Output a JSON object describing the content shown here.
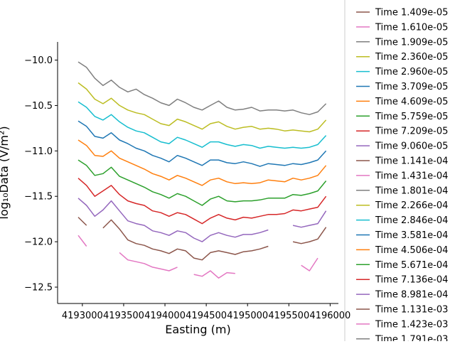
{
  "chart_data": {
    "type": "line",
    "xlabel": "Easting (m)",
    "ylabel": "log₁₀Data (V/m²)",
    "xlim": [
      4192700,
      4196100
    ],
    "ylim": [
      -12.68,
      -9.8
    ],
    "x_ticks": [
      4193000,
      4193500,
      4194000,
      4194500,
      4195000,
      4195500,
      4196000
    ],
    "x_tick_labels": [
      "4193000",
      "4193500",
      "4194000",
      "4194500",
      "4195000",
      "4195500",
      "4196000"
    ],
    "y_ticks": [
      -10.0,
      -10.5,
      -11.0,
      -11.5,
      -12.0,
      -12.5
    ],
    "y_tick_labels": [
      "−10.0",
      "−10.5",
      "−11.0",
      "−11.5",
      "−12.0",
      "−12.5"
    ],
    "legend_position": "right, outside plot (clipped at top and bottom)",
    "x": [
      4192950,
      4193050,
      4193150,
      4193250,
      4193350,
      4193450,
      4193550,
      4193650,
      4193750,
      4193850,
      4193950,
      4194050,
      4194150,
      4194250,
      4194350,
      4194450,
      4194550,
      4194650,
      4194750,
      4194850,
      4194950,
      4195050,
      4195150,
      4195250,
      4195350,
      4195450,
      4195550,
      4195650,
      4195750,
      4195850,
      4195950
    ],
    "series": [
      {
        "name": "Time 1.409e-05",
        "color": "#8c564b",
        "values": [
          null,
          null,
          null,
          null,
          null,
          null,
          null,
          null,
          null,
          null,
          null,
          null,
          null,
          null,
          null,
          null,
          null,
          null,
          null,
          null,
          null,
          null,
          null,
          null,
          null,
          null,
          null,
          null,
          null,
          null,
          null
        ]
      },
      {
        "name": "Time 1.610e-05",
        "color": "#e377c2",
        "values": [
          null,
          null,
          null,
          null,
          null,
          null,
          null,
          null,
          null,
          null,
          null,
          null,
          null,
          null,
          null,
          null,
          null,
          null,
          null,
          null,
          null,
          null,
          null,
          null,
          null,
          null,
          null,
          null,
          null,
          null,
          null
        ]
      },
      {
        "name": "Time 1.909e-05",
        "color": "#7f7f7f",
        "values": [
          -10.02,
          -10.08,
          -10.2,
          -10.28,
          -10.22,
          -10.3,
          -10.35,
          -10.32,
          -10.38,
          -10.42,
          -10.47,
          -10.5,
          -10.43,
          -10.47,
          -10.52,
          -10.55,
          -10.5,
          -10.45,
          -10.52,
          -10.55,
          -10.54,
          -10.52,
          -10.56,
          -10.55,
          -10.55,
          -10.56,
          -10.55,
          -10.58,
          -10.6,
          -10.57,
          -10.48
        ]
      },
      {
        "name": "Time 2.360e-05",
        "color": "#bcbd22",
        "values": [
          -10.25,
          -10.32,
          -10.43,
          -10.48,
          -10.42,
          -10.5,
          -10.55,
          -10.58,
          -10.6,
          -10.65,
          -10.7,
          -10.72,
          -10.65,
          -10.68,
          -10.72,
          -10.76,
          -10.7,
          -10.68,
          -10.73,
          -10.76,
          -10.74,
          -10.73,
          -10.76,
          -10.75,
          -10.76,
          -10.78,
          -10.77,
          -10.78,
          -10.79,
          -10.76,
          -10.66
        ]
      },
      {
        "name": "Time 2.960e-05",
        "color": "#17becf",
        "values": [
          -10.46,
          -10.52,
          -10.62,
          -10.66,
          -10.6,
          -10.68,
          -10.74,
          -10.78,
          -10.8,
          -10.85,
          -10.9,
          -10.92,
          -10.85,
          -10.88,
          -10.92,
          -10.96,
          -10.9,
          -10.9,
          -10.93,
          -10.95,
          -10.93,
          -10.94,
          -10.97,
          -10.95,
          -10.96,
          -10.97,
          -10.96,
          -10.97,
          -10.96,
          -10.93,
          -10.83
        ]
      },
      {
        "name": "Time 3.709e-05",
        "color": "#1f77b4",
        "values": [
          -10.67,
          -10.73,
          -10.84,
          -10.86,
          -10.8,
          -10.88,
          -10.92,
          -10.97,
          -11.0,
          -11.05,
          -11.08,
          -11.12,
          -11.05,
          -11.08,
          -11.12,
          -11.16,
          -11.1,
          -11.1,
          -11.13,
          -11.14,
          -11.12,
          -11.14,
          -11.17,
          -11.14,
          -11.15,
          -11.16,
          -11.14,
          -11.15,
          -11.13,
          -11.1,
          -11.0
        ]
      },
      {
        "name": "Time 4.609e-05",
        "color": "#ff7f0e",
        "values": [
          -10.88,
          -10.94,
          -11.05,
          -11.06,
          -11.0,
          -11.08,
          -11.12,
          -11.16,
          -11.2,
          -11.25,
          -11.28,
          -11.32,
          -11.27,
          -11.3,
          -11.34,
          -11.38,
          -11.32,
          -11.3,
          -11.34,
          -11.36,
          -11.35,
          -11.36,
          -11.35,
          -11.32,
          -11.33,
          -11.34,
          -11.3,
          -11.32,
          -11.3,
          -11.27,
          -11.16
        ]
      },
      {
        "name": "Time 5.759e-05",
        "color": "#2ca02c",
        "values": [
          -11.1,
          -11.16,
          -11.27,
          -11.25,
          -11.18,
          -11.28,
          -11.32,
          -11.36,
          -11.4,
          -11.45,
          -11.48,
          -11.52,
          -11.47,
          -11.5,
          -11.55,
          -11.6,
          -11.53,
          -11.5,
          -11.55,
          -11.56,
          -11.55,
          -11.55,
          -11.54,
          -11.52,
          -11.52,
          -11.52,
          -11.48,
          -11.49,
          -11.47,
          -11.44,
          -11.33
        ]
      },
      {
        "name": "Time 7.209e-05",
        "color": "#d62728",
        "values": [
          -11.3,
          -11.38,
          -11.5,
          -11.44,
          -11.38,
          -11.48,
          -11.55,
          -11.58,
          -11.6,
          -11.66,
          -11.68,
          -11.72,
          -11.68,
          -11.7,
          -11.75,
          -11.8,
          -11.74,
          -11.7,
          -11.74,
          -11.76,
          -11.73,
          -11.74,
          -11.72,
          -11.7,
          -11.7,
          -11.69,
          -11.65,
          -11.66,
          -11.64,
          -11.62,
          -11.5
        ]
      },
      {
        "name": "Time 9.060e-05",
        "color": "#9467bd",
        "values": [
          -11.52,
          -11.6,
          -11.72,
          -11.65,
          -11.55,
          -11.66,
          -11.77,
          -11.8,
          -11.82,
          -11.88,
          -11.9,
          -11.93,
          -11.88,
          -11.9,
          -11.96,
          -12.0,
          -11.93,
          -11.9,
          -11.93,
          -11.95,
          -11.92,
          -11.92,
          -11.9,
          -11.87,
          null,
          null,
          -11.82,
          -11.84,
          -11.82,
          -11.8,
          -11.66
        ]
      },
      {
        "name": "Time 1.141e-04",
        "color": "#8c564b",
        "values": [
          -11.73,
          -11.82,
          null,
          -11.85,
          -11.76,
          -11.86,
          -11.98,
          -12.02,
          -12.04,
          -12.08,
          -12.1,
          -12.13,
          -12.08,
          -12.1,
          -12.18,
          -12.2,
          -12.12,
          -12.1,
          -12.12,
          -12.14,
          -12.11,
          -12.1,
          -12.08,
          -12.05,
          null,
          null,
          -12.0,
          -12.02,
          -12.0,
          -11.97,
          -11.84
        ]
      },
      {
        "name": "Time 1.431e-04",
        "color": "#e377c2",
        "values": [
          -11.93,
          -12.05,
          null,
          -12.07,
          null,
          -12.12,
          -12.2,
          -12.22,
          -12.24,
          -12.28,
          -12.3,
          -12.32,
          -12.28,
          null,
          -12.36,
          -12.38,
          -12.32,
          -12.4,
          -12.34,
          -12.35,
          null,
          -12.26,
          null,
          -12.24,
          null,
          null,
          null,
          -12.26,
          -12.32,
          -12.18,
          null
        ]
      },
      {
        "name": "Time 1.801e-04",
        "color": "#7f7f7f",
        "values": [
          null,
          null,
          null,
          null,
          null,
          null,
          null,
          null,
          null,
          null,
          null,
          null,
          null,
          null,
          null,
          null,
          null,
          null,
          null,
          null,
          null,
          null,
          null,
          null,
          null,
          null,
          null,
          null,
          null,
          null,
          null
        ]
      },
      {
        "name": "Time 2.266e-04",
        "color": "#bcbd22",
        "values": [
          null,
          null,
          null,
          null,
          null,
          null,
          null,
          null,
          null,
          null,
          null,
          null,
          null,
          null,
          null,
          null,
          null,
          null,
          null,
          null,
          null,
          null,
          null,
          null,
          null,
          null,
          null,
          null,
          null,
          null,
          null
        ]
      },
      {
        "name": "Time 2.846e-04",
        "color": "#17becf",
        "values": [
          null,
          null,
          null,
          null,
          null,
          null,
          null,
          null,
          null,
          null,
          null,
          null,
          null,
          null,
          null,
          null,
          null,
          null,
          null,
          null,
          null,
          null,
          null,
          null,
          null,
          null,
          null,
          null,
          null,
          null,
          null
        ]
      },
      {
        "name": "Time 3.581e-04",
        "color": "#1f77b4",
        "values": [
          null,
          null,
          null,
          null,
          null,
          null,
          null,
          null,
          null,
          null,
          null,
          null,
          null,
          null,
          null,
          null,
          null,
          null,
          null,
          null,
          null,
          null,
          null,
          null,
          null,
          null,
          null,
          null,
          null,
          null,
          null
        ]
      },
      {
        "name": "Time 4.506e-04",
        "color": "#ff7f0e",
        "values": [
          null,
          null,
          null,
          null,
          null,
          null,
          null,
          null,
          null,
          null,
          null,
          null,
          null,
          null,
          null,
          null,
          null,
          null,
          null,
          null,
          null,
          null,
          null,
          null,
          null,
          null,
          null,
          null,
          null,
          null,
          null
        ]
      },
      {
        "name": "Time 5.671e-04",
        "color": "#2ca02c",
        "values": [
          null,
          null,
          null,
          null,
          null,
          null,
          null,
          null,
          null,
          null,
          null,
          null,
          null,
          null,
          null,
          null,
          null,
          null,
          null,
          null,
          null,
          null,
          null,
          null,
          null,
          null,
          null,
          null,
          null,
          null,
          null
        ]
      },
      {
        "name": "Time 7.136e-04",
        "color": "#d62728",
        "values": [
          null,
          null,
          null,
          null,
          null,
          null,
          null,
          null,
          null,
          null,
          null,
          null,
          null,
          null,
          null,
          null,
          null,
          null,
          null,
          null,
          null,
          null,
          null,
          null,
          null,
          null,
          null,
          null,
          null,
          null,
          null
        ]
      },
      {
        "name": "Time 8.981e-04",
        "color": "#9467bd",
        "values": [
          null,
          null,
          null,
          null,
          null,
          null,
          null,
          null,
          null,
          null,
          null,
          null,
          null,
          null,
          null,
          null,
          null,
          null,
          null,
          null,
          null,
          null,
          null,
          null,
          null,
          null,
          null,
          null,
          null,
          null,
          null
        ]
      },
      {
        "name": "Time 1.131e-03",
        "color": "#8c564b",
        "values": [
          null,
          null,
          null,
          null,
          null,
          null,
          null,
          null,
          null,
          null,
          null,
          null,
          null,
          null,
          null,
          null,
          null,
          null,
          null,
          null,
          null,
          null,
          null,
          null,
          null,
          null,
          null,
          null,
          null,
          null,
          null
        ]
      },
      {
        "name": "Time 1.423e-03",
        "color": "#e377c2",
        "values": [
          null,
          null,
          null,
          null,
          null,
          null,
          null,
          null,
          null,
          null,
          null,
          null,
          null,
          null,
          null,
          null,
          null,
          null,
          null,
          null,
          null,
          null,
          null,
          null,
          null,
          null,
          null,
          null,
          null,
          null,
          null
        ]
      },
      {
        "name": "Time 1.791e-03",
        "color": "#7f7f7f",
        "values": [
          null,
          null,
          null,
          null,
          null,
          null,
          null,
          null,
          null,
          null,
          null,
          null,
          null,
          null,
          null,
          null,
          null,
          null,
          null,
          null,
          null,
          null,
          null,
          null,
          null,
          null,
          null,
          null,
          null,
          null,
          null
        ]
      }
    ]
  }
}
